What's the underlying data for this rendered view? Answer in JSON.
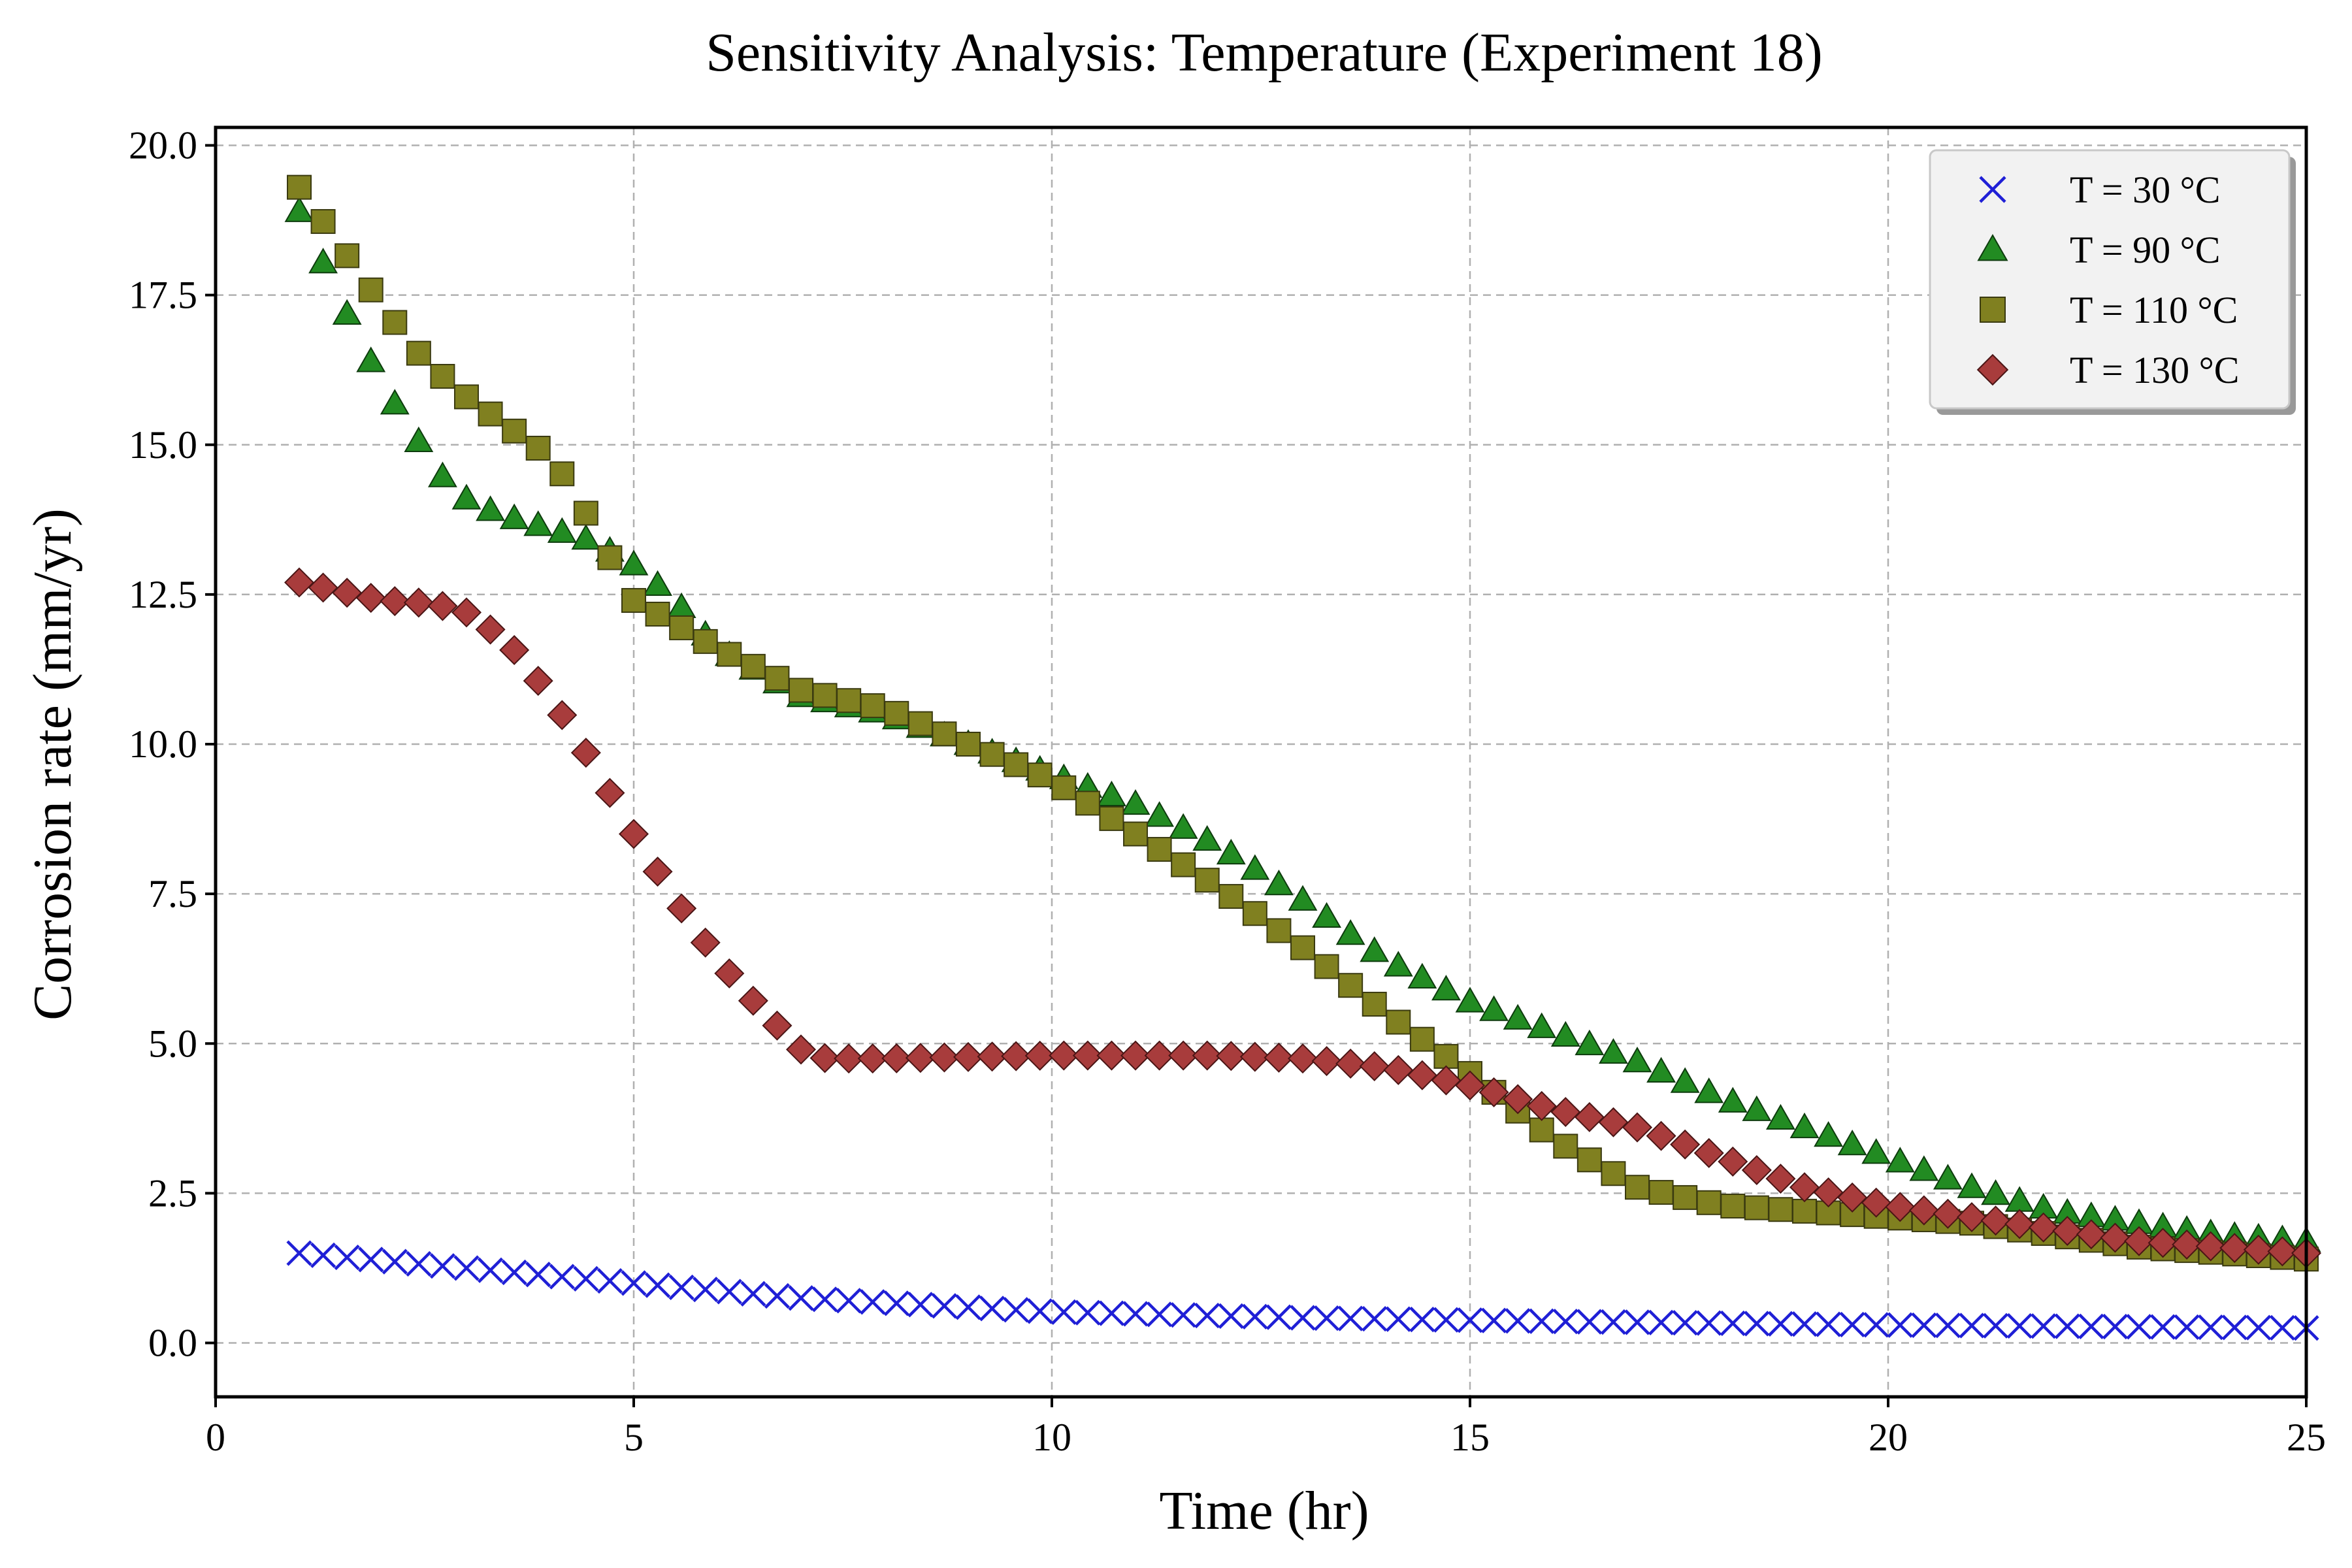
{
  "chart_data": {
    "type": "scatter",
    "title": "Sensitivity Analysis: Temperature (Experiment 18)",
    "xlabel": "Time (hr)",
    "ylabel": "Corrosion rate (mm/yr)",
    "xlim": [
      0,
      25
    ],
    "ylim": [
      -0.9,
      20.3
    ],
    "x_ticks": [
      0,
      5,
      10,
      15,
      20,
      25
    ],
    "x_tick_labels": [
      "0",
      "5",
      "10",
      "15",
      "20",
      "25"
    ],
    "y_ticks": [
      0,
      2.5,
      5,
      7.5,
      10,
      12.5,
      15,
      17.5,
      20
    ],
    "y_tick_labels": [
      "0.0",
      "2.5",
      "5.0",
      "7.5",
      "10.0",
      "12.5",
      "15.0",
      "17.5",
      "20.0"
    ],
    "grid": true,
    "legend_position": "top-right",
    "x_range": {
      "start": 1.0,
      "end": 25.0,
      "count": 85
    },
    "series": [
      {
        "name": "T = 30 °C",
        "marker": "x",
        "color": "#1f1fd6",
        "x_knots": [
          1,
          3,
          5,
          7,
          10,
          13,
          16,
          20,
          25
        ],
        "y_knots": [
          1.5,
          1.25,
          1.0,
          0.75,
          0.52,
          0.42,
          0.36,
          0.3,
          0.25
        ]
      },
      {
        "name": "T = 90 °C",
        "marker": "triangle",
        "color": "#228b22",
        "x_knots": [
          1,
          1.3,
          1.6,
          2.0,
          2.5,
          2.8,
          3.1,
          3.5,
          4.0,
          4.5,
          5.0,
          5.5,
          6.0,
          7.0,
          8.0,
          9.0,
          10.0,
          11.0,
          12.0,
          13.0,
          14.0,
          15.0,
          16.0,
          17.0,
          18.0,
          19.0,
          20.0,
          21.0,
          22.0,
          23.0,
          24.0,
          25.0
        ],
        "y_knots": [
          18.9,
          18.0,
          17.1,
          16.0,
          14.9,
          14.3,
          14.0,
          13.8,
          13.6,
          13.4,
          13.0,
          12.4,
          11.6,
          10.8,
          10.5,
          10.0,
          9.5,
          9.0,
          8.3,
          7.4,
          6.4,
          5.7,
          5.2,
          4.7,
          4.1,
          3.6,
          3.1,
          2.6,
          2.2,
          2.0,
          1.8,
          1.7
        ]
      },
      {
        "name": "T = 110 °C",
        "marker": "square",
        "color": "#808020",
        "x_knots": [
          1,
          1.3,
          1.6,
          2.0,
          2.5,
          3.0,
          3.5,
          4.0,
          4.3,
          4.6,
          5.0,
          6.0,
          7.0,
          8.0,
          9.0,
          10.0,
          11.0,
          12.0,
          13.0,
          14.0,
          15.0,
          16.0,
          17.0,
          18.0,
          19.0,
          20.0,
          21.0,
          22.0,
          23.0,
          24.0,
          25.0
        ],
        "y_knots": [
          19.3,
          18.7,
          18.1,
          17.3,
          16.4,
          15.8,
          15.3,
          14.8,
          14.2,
          13.4,
          12.4,
          11.6,
          10.9,
          10.6,
          10.0,
          9.4,
          8.5,
          7.6,
          6.6,
          5.5,
          4.5,
          3.4,
          2.6,
          2.3,
          2.2,
          2.1,
          2.0,
          1.8,
          1.6,
          1.5,
          1.4
        ]
      },
      {
        "name": "T = 130 °C",
        "marker": "diamond",
        "color": "#a83c3c",
        "x_knots": [
          1,
          2.0,
          2.6,
          3.0,
          3.5,
          4.0,
          4.5,
          5.0,
          5.5,
          6.0,
          6.5,
          7.0,
          7.3,
          8.0,
          10.0,
          12.0,
          13.0,
          14.0,
          15.0,
          16.0,
          17.0,
          18.0,
          19.0,
          20.0,
          21.0,
          22.0,
          23.0,
          24.0,
          25.0
        ],
        "y_knots": [
          12.7,
          12.4,
          12.35,
          12.2,
          11.7,
          10.8,
          9.7,
          8.5,
          7.4,
          6.4,
          5.6,
          4.9,
          4.75,
          4.75,
          4.8,
          4.8,
          4.75,
          4.6,
          4.3,
          3.9,
          3.6,
          3.1,
          2.6,
          2.3,
          2.1,
          1.9,
          1.7,
          1.6,
          1.5
        ]
      }
    ]
  }
}
